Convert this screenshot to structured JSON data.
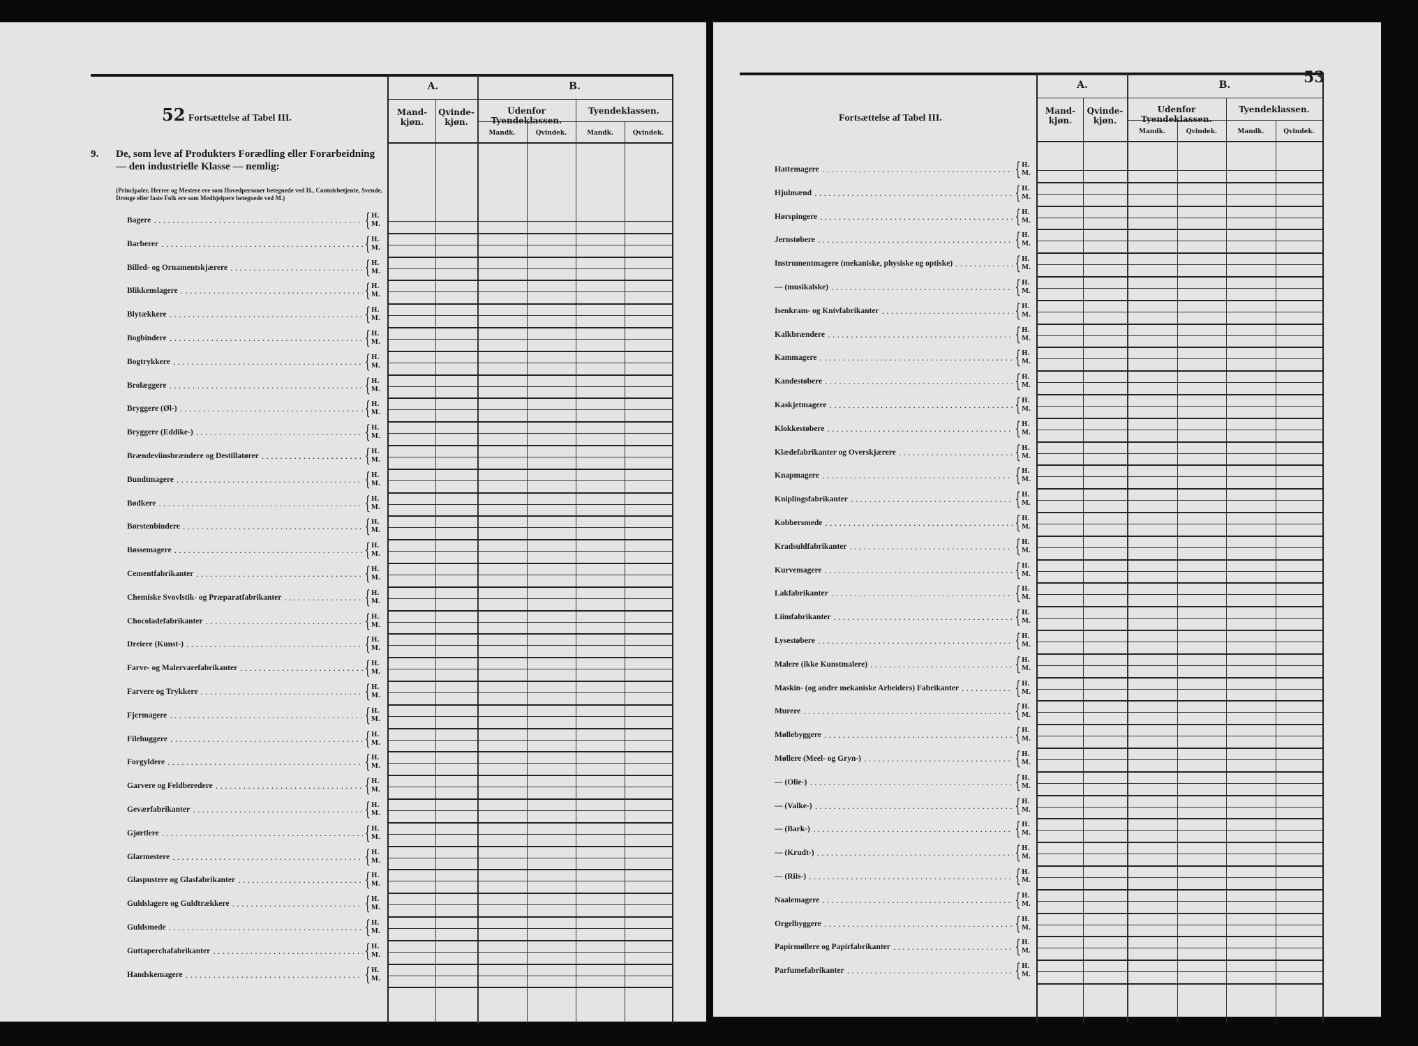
{
  "header": {
    "col_A": "A.",
    "col_B": "B.",
    "mandkjon": "Mand-kjøn.",
    "qvindekjon": "Qvinde-kjøn.",
    "udenfor": "Udenfor Tyendeklassen.",
    "tyende": "Tyendeklassen.",
    "mandk": "Mandk.",
    "qvindek": "Qvindek.",
    "H": "H.",
    "M": "M."
  },
  "left_page": {
    "page_number": "52",
    "title": "Fortsættelse af Tabel III.",
    "section_number": "9.",
    "section_heading": "De, som leve af Produkters Forædling eller Forarbeidning — den industrielle Klasse — nemlig:",
    "section_note": "(Principaler, Herrer og Mestere ere som Hovedpersoner betegnede ved H., Contoirbetjente, Svende, Drenge eller faste Folk ere som Medhjelpere betegnede ved M.)",
    "items": [
      "Bagere",
      "Barberer",
      "Billed- og Ornamentskjærere",
      "Blikkenslagere",
      "Blytækkere",
      "Bogbindere",
      "Bogtrykkere",
      "Brolæggere",
      "Bryggere (Øl-)",
      "Bryggere (Eddike-)",
      "Brændeviinsbrændere og Destillatører",
      "Bundtmagere",
      "Bødkere",
      "Børstenbindere",
      "Bøssemagere",
      "Cementfabrikanter",
      "Chemiske Svovlstik- og Præparatfabrikanter",
      "Chocoladefabrikanter",
      "Dreiere (Kunst-)",
      "Farve- og Malervarefabrikanter",
      "Farvere og Trykkere",
      "Fjermagere",
      "Filehuggere",
      "Forgyldere",
      "Garvere og Feldberedere",
      "Geværfabrikanter",
      "Gjørtlere",
      "Glarmestere",
      "Glaspustere og Glasfabrikanter",
      "Guldslagere og Guldtrækkere",
      "Guldsmede",
      "Guttaperchafabrikanter",
      "Handskemagere"
    ]
  },
  "right_page": {
    "page_number": "53",
    "title": "Fortsættelse af Tabel III.",
    "items": [
      "Hattemagere",
      "Hjulmænd",
      "Hørspingere",
      "Jernstøbere",
      "Instrumentmagere (mekaniske, physiske og optiske)",
      "— (musikalske)",
      "Isenkram- og Knivfabrikanter",
      "Kalkbrændere",
      "Kammagere",
      "Kandestøbere",
      "Kaskjetmagere",
      "Klokkestøbere",
      "Klædefabrikanter og Overskjærere",
      "Knapmagere",
      "Kniplingsfabrikanter",
      "Kobbersmede",
      "Kradsuldfabrikanter",
      "Kurvemagere",
      "Lakfabrikanter",
      "Liimfabrikanter",
      "Lysestøbere",
      "Malere (ikke Kunstmalere)",
      "Maskin- (og andre mekaniske Arbeiders) Fabrikanter",
      "Murere",
      "Møllebyggere",
      "Møllere (Meel- og Gryn-)",
      "— (Olie-)",
      "— (Valke-)",
      "— (Bark-)",
      "— (Krudt-)",
      "— (Riis-)",
      "Naalemagere",
      "Orgelbyggere",
      "Papirmøllere og Papirfabrikanter",
      "Parfumefabrikanter"
    ]
  }
}
